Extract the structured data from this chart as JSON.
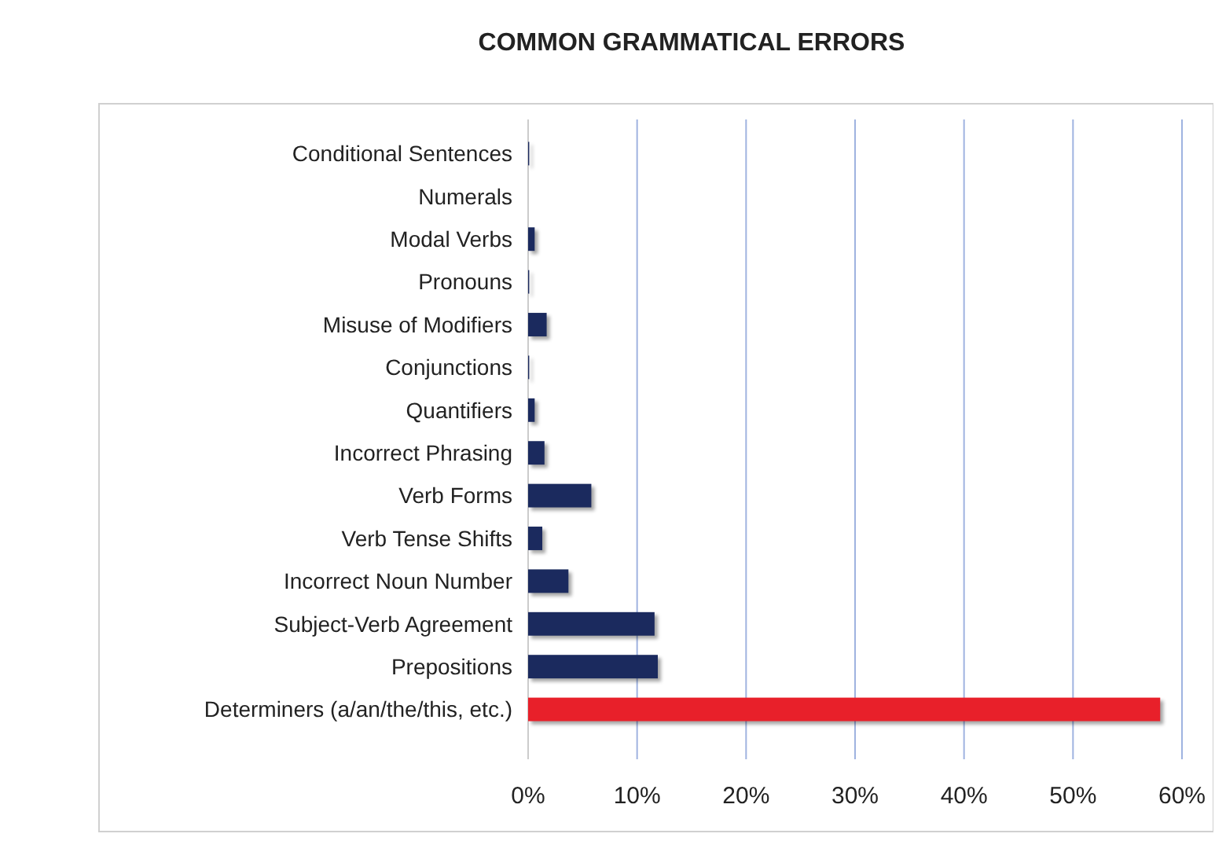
{
  "chart_data": {
    "type": "bar",
    "title": "COMMON GRAMMATICAL ERRORS",
    "orientation": "horizontal",
    "categories": [
      "Conditional Sentences",
      "Numerals",
      "Modal Verbs",
      "Pronouns",
      "Misuse of Modifiers",
      "Conjunctions",
      "Quantifiers",
      "Incorrect Phrasing",
      "Verb Forms",
      "Verb Tense Shifts",
      "Incorrect Noun Number",
      "Subject-Verb Agreement",
      "Prepositions",
      "Determiners (a/an/the/this, etc.)"
    ],
    "values": [
      0.1,
      0,
      0.6,
      0.1,
      1.7,
      0.1,
      0.6,
      1.5,
      5.8,
      1.3,
      3.7,
      11.6,
      11.9,
      58
    ],
    "colors": [
      "#1b2a5e",
      "#1b2a5e",
      "#1b2a5e",
      "#1b2a5e",
      "#1b2a5e",
      "#1b2a5e",
      "#1b2a5e",
      "#1b2a5e",
      "#1b2a5e",
      "#1b2a5e",
      "#1b2a5e",
      "#1b2a5e",
      "#1b2a5e",
      "#e8202a"
    ],
    "xlim": [
      0,
      60
    ],
    "xticks": [
      {
        "value": 0,
        "label": "0%"
      },
      {
        "value": 10,
        "label": "10%"
      },
      {
        "value": 20,
        "label": "20%"
      },
      {
        "value": 30,
        "label": "30%"
      },
      {
        "value": 40,
        "label": "40%"
      },
      {
        "value": 50,
        "label": "50%"
      },
      {
        "value": 60,
        "label": "60%"
      }
    ],
    "grid": "x"
  }
}
